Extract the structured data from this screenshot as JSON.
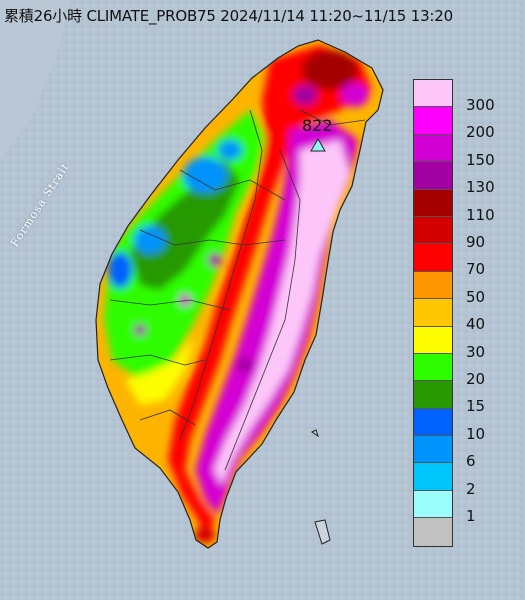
{
  "title": "累積26小時 CLIMATE_PROB75 2024/11/14 11:20~11/15 13:20",
  "sea_label": "Formosa Strait",
  "peak": {
    "value": "822",
    "marker": "triangle-marker-icon",
    "marker_color": "#8ff5f5"
  },
  "legend": [
    {
      "label": "300",
      "color": "#fdc6f9"
    },
    {
      "label": "200",
      "color": "#fc00fc"
    },
    {
      "label": "150",
      "color": "#d300d4"
    },
    {
      "label": "130",
      "color": "#a300a3"
    },
    {
      "label": "110",
      "color": "#a50000"
    },
    {
      "label": "90",
      "color": "#d40000"
    },
    {
      "label": "70",
      "color": "#fd0000"
    },
    {
      "label": "50",
      "color": "#fd9600"
    },
    {
      "label": "40",
      "color": "#fdc600"
    },
    {
      "label": "30",
      "color": "#fdfd00"
    },
    {
      "label": "20",
      "color": "#2efd00"
    },
    {
      "label": "15",
      "color": "#289800"
    },
    {
      "label": "10",
      "color": "#0061fc"
    },
    {
      "label": "6",
      "color": "#0093fc"
    },
    {
      "label": "2",
      "color": "#00c6fc"
    },
    {
      "label": "1",
      "color": "#9bfcfc"
    },
    {
      "label": "",
      "color": "#c1c1c1"
    }
  ],
  "colors": {
    "sea": "#b4c4d3",
    "land_outline": "#222222",
    "county_border": "#333333"
  }
}
